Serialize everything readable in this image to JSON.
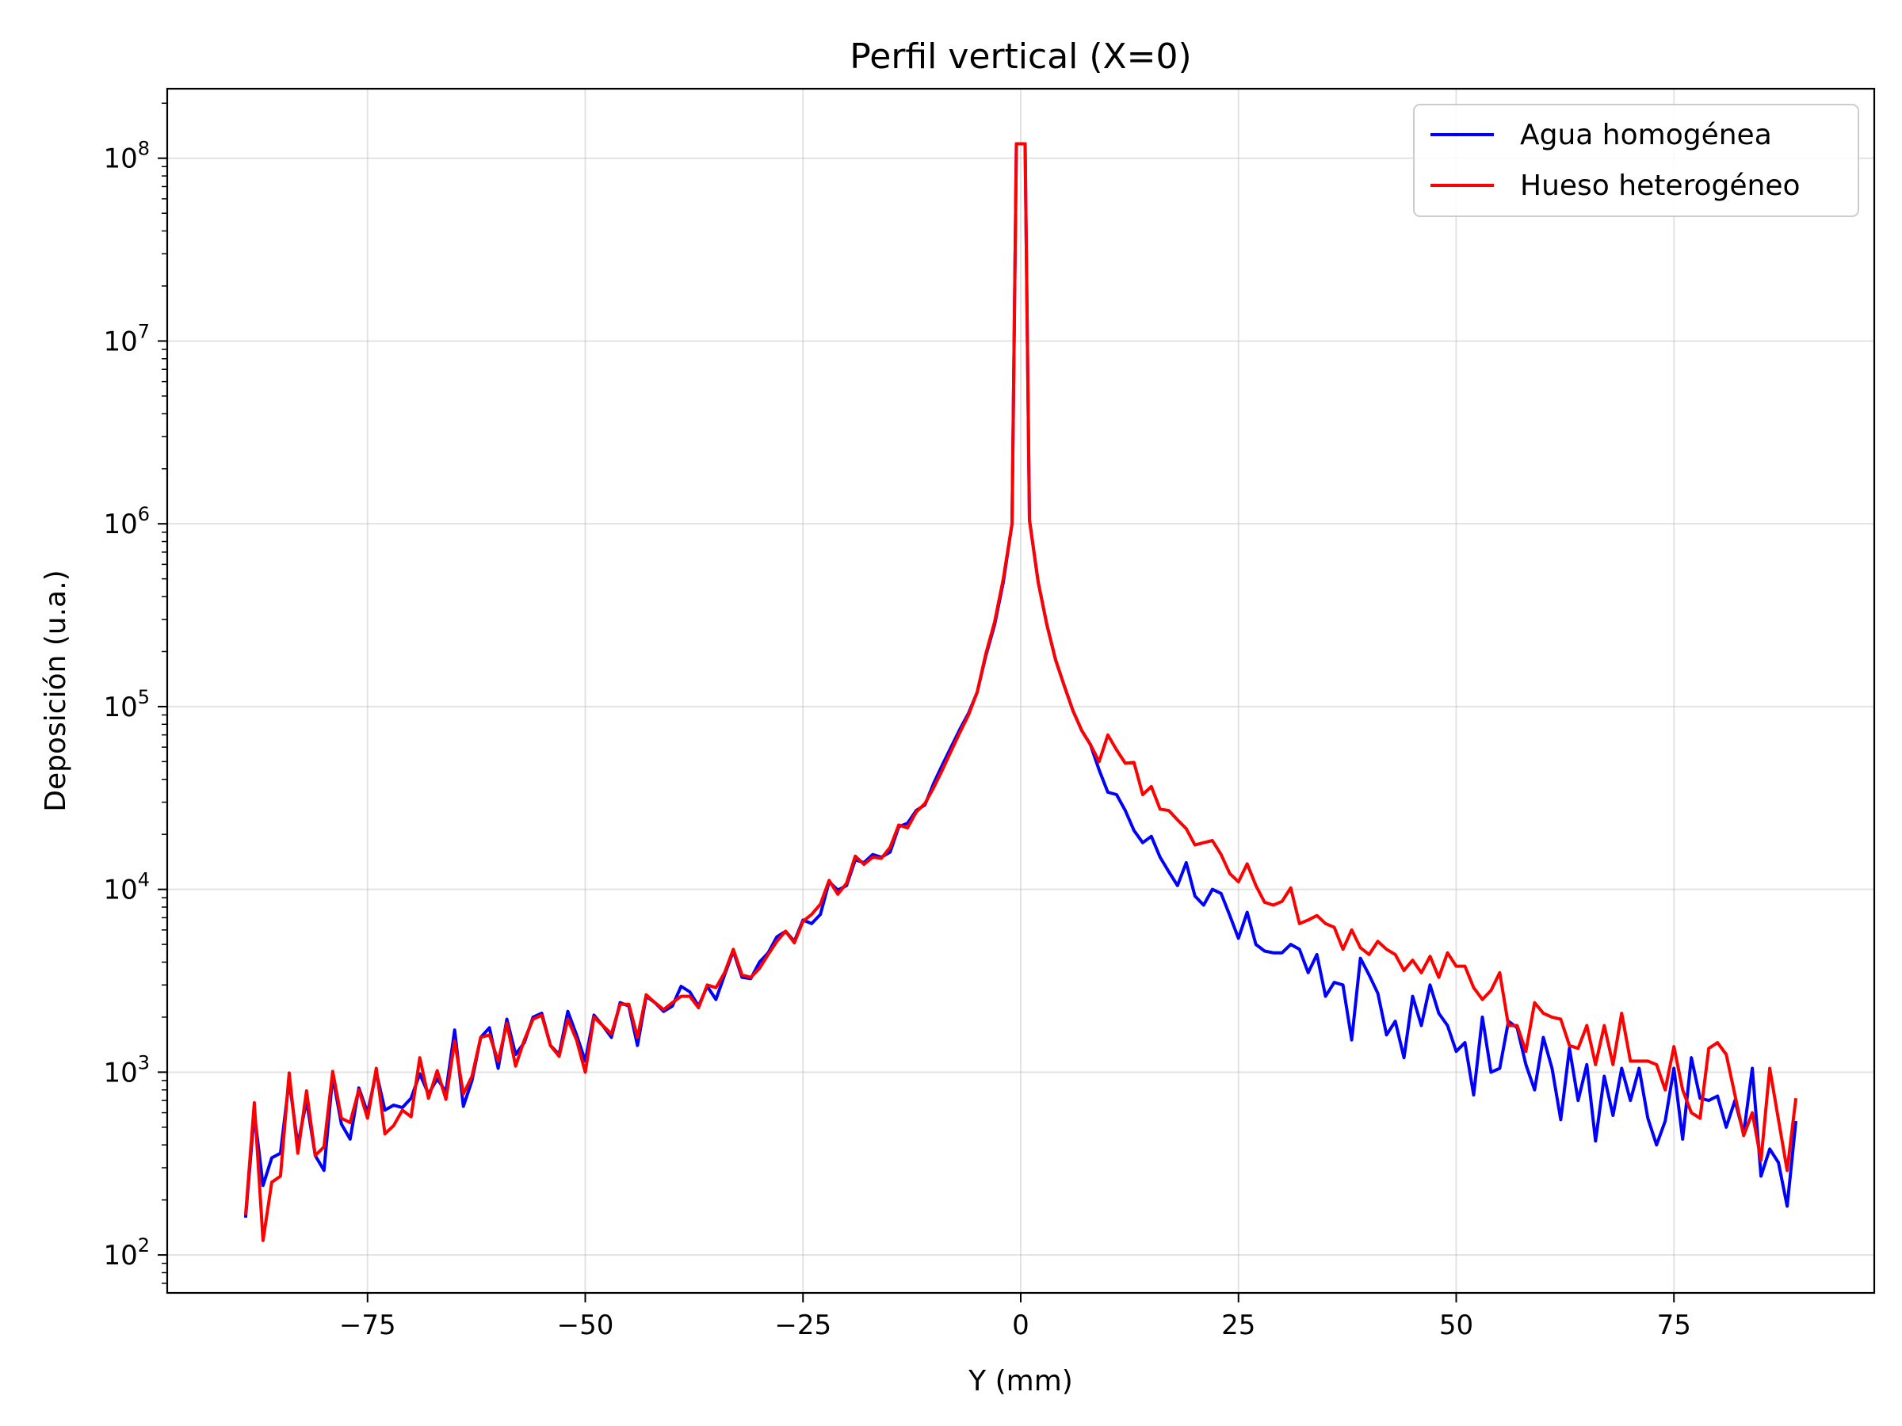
{
  "chart_data": {
    "type": "line",
    "title": "Perfil vertical (X=0)",
    "xlabel": "Y (mm)",
    "ylabel": "Deposición (u.a.)",
    "yscale": "log",
    "xlim": [
      -98,
      98
    ],
    "ylim": [
      62,
      240000000
    ],
    "grid": true,
    "legend_position": "top-right",
    "x_ticks": [
      {
        "value": -75,
        "label": "−75"
      },
      {
        "value": -50,
        "label": "−50"
      },
      {
        "value": -25,
        "label": "−25"
      },
      {
        "value": 0,
        "label": "0"
      },
      {
        "value": 25,
        "label": "25"
      },
      {
        "value": 50,
        "label": "50"
      },
      {
        "value": 75,
        "label": "75"
      }
    ],
    "y_ticks": [
      {
        "value": 100,
        "base": "10",
        "exp": "2"
      },
      {
        "value": 1000,
        "base": "10",
        "exp": "3"
      },
      {
        "value": 10000,
        "base": "10",
        "exp": "4"
      },
      {
        "value": 100000,
        "base": "10",
        "exp": "5"
      },
      {
        "value": 1000000,
        "base": "10",
        "exp": "6"
      },
      {
        "value": 10000000,
        "base": "10",
        "exp": "7"
      },
      {
        "value": 100000000,
        "base": "10",
        "exp": "8"
      }
    ],
    "x": [
      -89,
      -88,
      -87,
      -86,
      -85,
      -84,
      -83,
      -82,
      -81,
      -80,
      -79,
      -78,
      -77,
      -76,
      -75,
      -74,
      -73,
      -72,
      -71,
      -70,
      -69,
      -68,
      -67,
      -66,
      -65,
      -64,
      -63,
      -62,
      -61,
      -60,
      -59,
      -58,
      -57,
      -56,
      -55,
      -54,
      -53,
      -52,
      -51,
      -50,
      -49,
      -48,
      -47,
      -46,
      -45,
      -44,
      -43,
      -42,
      -41,
      -40,
      -39,
      -38,
      -37,
      -36,
      -35,
      -34,
      -33,
      -32,
      -31,
      -30,
      -29,
      -28,
      -27,
      -26,
      -25,
      -24,
      -23,
      -22,
      -21,
      -20,
      -19,
      -18,
      -17,
      -16,
      -15,
      -14,
      -13,
      -12,
      -11,
      -10,
      -9,
      -8,
      -7,
      -6,
      -5,
      -4,
      -3,
      -2,
      -1,
      -0.5,
      0.5,
      1,
      2,
      3,
      4,
      5,
      6,
      7,
      8,
      9,
      10,
      11,
      12,
      13,
      14,
      15,
      16,
      17,
      18,
      19,
      20,
      21,
      22,
      23,
      24,
      25,
      26,
      27,
      28,
      29,
      30,
      31,
      32,
      33,
      34,
      35,
      36,
      37,
      38,
      39,
      40,
      41,
      42,
      43,
      44,
      45,
      46,
      47,
      48,
      49,
      50,
      51,
      52,
      53,
      54,
      55,
      56,
      57,
      58,
      59,
      60,
      61,
      62,
      63,
      64,
      65,
      66,
      67,
      68,
      69,
      70,
      71,
      72,
      73,
      74,
      75,
      76,
      77,
      78,
      79,
      80,
      81,
      82,
      83,
      84,
      85,
      86,
      87,
      88,
      89
    ],
    "series": [
      {
        "name": "Agua homogénea",
        "color": "#0000ff",
        "values": [
          160,
          600,
          240,
          340,
          360,
          900,
          400,
          700,
          350,
          290,
          950,
          520,
          430,
          820,
          600,
          1000,
          620,
          660,
          640,
          720,
          980,
          760,
          920,
          780,
          1700,
          650,
          900,
          1550,
          1750,
          1050,
          1950,
          1250,
          1450,
          2000,
          2100,
          1400,
          1250,
          2150,
          1600,
          1150,
          2050,
          1800,
          1550,
          2400,
          2300,
          1400,
          2600,
          2400,
          2150,
          2300,
          2950,
          2750,
          2300,
          2950,
          2500,
          3400,
          4600,
          3300,
          3250,
          4000,
          4500,
          5500,
          5900,
          5200,
          6800,
          6500,
          7300,
          11000,
          9900,
          10500,
          14500,
          14000,
          15500,
          15000,
          16000,
          22000,
          23000,
          27000,
          29000,
          38000,
          48000,
          60000,
          75000,
          92000,
          120000,
          190000,
          280000,
          480000,
          1000000,
          120000000,
          120000000,
          1050000,
          480000,
          280000,
          180000,
          130000,
          95000,
          74000,
          62000,
          45000,
          34000,
          33000,
          27000,
          21000,
          18000,
          19500,
          15000,
          12500,
          10500,
          14000,
          9200,
          8200,
          10000,
          9500,
          7200,
          5400,
          7500,
          5000,
          4600,
          4500,
          4500,
          5000,
          4700,
          3500,
          4400,
          2600,
          3100,
          3000,
          1500,
          4200,
          3400,
          2700,
          1600,
          1900,
          1200,
          2600,
          1800,
          3000,
          2100,
          1800,
          1300,
          1450,
          750,
          2000,
          1000,
          1050,
          1900,
          1750,
          1100,
          800,
          1550,
          1050,
          550,
          1350,
          700,
          1100,
          420,
          950,
          580,
          1050,
          700,
          1050,
          560,
          400,
          540,
          1050,
          430,
          1200,
          720,
          700,
          740,
          500,
          700,
          460,
          1050,
          270,
          380,
          320,
          185,
          540
        ]
      },
      {
        "name": "Hueso heterogéneo",
        "color": "#ff0000",
        "values": [
          165,
          680,
          120,
          250,
          270,
          990,
          360,
          790,
          350,
          390,
          1010,
          560,
          530,
          800,
          560,
          1050,
          460,
          510,
          620,
          570,
          1200,
          720,
          1020,
          710,
          1480,
          760,
          950,
          1550,
          1600,
          1150,
          1850,
          1080,
          1500,
          1950,
          2050,
          1400,
          1220,
          1950,
          1500,
          1000,
          2000,
          1800,
          1620,
          2350,
          2350,
          1550,
          2650,
          2400,
          2200,
          2400,
          2600,
          2600,
          2250,
          3000,
          2900,
          3500,
          4700,
          3400,
          3300,
          3700,
          4400,
          5200,
          5900,
          5100,
          6700,
          7300,
          8300,
          11200,
          9400,
          10800,
          15200,
          13700,
          15000,
          14800,
          17000,
          22500,
          21700,
          26500,
          29500,
          36000,
          45000,
          57000,
          72000,
          90000,
          120000,
          195000,
          290000,
          500000,
          1000000,
          120000000,
          120000000,
          1050000,
          480000,
          280000,
          180000,
          130000,
          95000,
          74000,
          62000,
          50000,
          70000,
          58000,
          49000,
          49500,
          33000,
          36500,
          27500,
          27000,
          24000,
          21500,
          17500,
          18000,
          18500,
          15500,
          12200,
          11000,
          13800,
          10500,
          8500,
          8200,
          8600,
          10200,
          6500,
          6800,
          7200,
          6500,
          6200,
          4700,
          6000,
          4800,
          4400,
          5200,
          4700,
          4400,
          3600,
          4100,
          3500,
          4300,
          3300,
          4500,
          3800,
          3800,
          2900,
          2500,
          2800,
          3500,
          1800,
          1800,
          1300,
          2400,
          2100,
          2000,
          1950,
          1400,
          1350,
          1800,
          1100,
          1800,
          1100,
          2100,
          1150,
          1150,
          1150,
          1100,
          800,
          1380,
          800,
          600,
          560,
          1350,
          1450,
          1250,
          750,
          450,
          600,
          330,
          1050,
          550,
          290,
          720
        ]
      }
    ]
  }
}
